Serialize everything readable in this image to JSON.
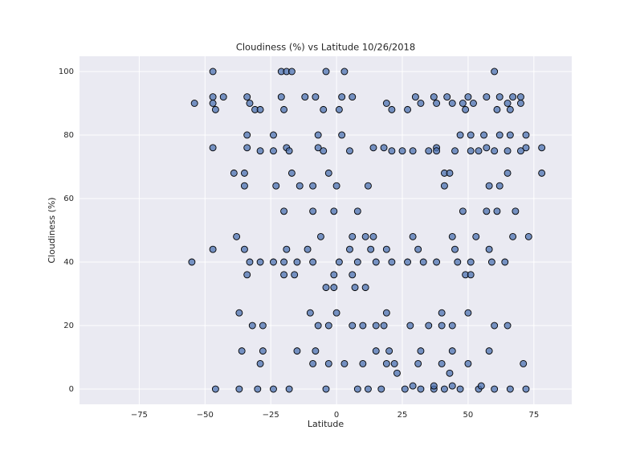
{
  "chart_data": {
    "type": "scatter",
    "title": "Cloudiness (%) vs Latitude 10/26/2018",
    "x_label": "Latitude",
    "y_label": "Cloudiness (%)",
    "xlim": [
      -97.7,
      89.4
    ],
    "ylim": [
      -4.8,
      104.8
    ],
    "xticks": [
      {
        "value": -75,
        "label": "−75"
      },
      {
        "value": -50,
        "label": "−50"
      },
      {
        "value": -25,
        "label": "−25"
      },
      0,
      25,
      50,
      75
    ],
    "yticks": [
      0,
      20,
      40,
      60,
      80,
      100
    ],
    "grid": true,
    "color": "#4c72b0",
    "x": [
      -46,
      -37,
      -30,
      -24,
      -18,
      -4,
      8,
      12,
      17,
      26,
      32,
      37,
      41,
      47,
      54,
      60,
      66,
      72,
      29,
      37,
      44,
      55,
      -47,
      -21,
      -19,
      -17,
      -4,
      3,
      60,
      -47,
      -43,
      -34,
      -21,
      -12,
      -8,
      2,
      6,
      30,
      37,
      42,
      50,
      57,
      62,
      67,
      70,
      -54,
      -47,
      -33,
      19,
      32,
      38,
      44,
      48,
      52,
      65,
      70,
      -46,
      -31,
      -29,
      -20,
      -5,
      1,
      21,
      27,
      49,
      61,
      66,
      -34,
      -24,
      -7,
      2,
      47,
      51,
      56,
      62,
      66,
      72,
      -47,
      -34,
      -19,
      -7,
      14,
      18,
      38,
      57,
      72,
      78,
      -29,
      -24,
      -18,
      -5,
      5,
      21,
      25,
      29,
      35,
      38,
      45,
      51,
      54,
      60,
      65,
      70,
      -39,
      -35,
      -17,
      -3,
      41,
      43,
      65,
      78,
      -35,
      -23,
      -14,
      -9,
      0,
      12,
      41,
      58,
      62,
      -20,
      -9,
      -1,
      8,
      48,
      57,
      61,
      68,
      -38,
      -6,
      6,
      11,
      14,
      29,
      44,
      53,
      67,
      73,
      -47,
      -35,
      -19,
      -11,
      5,
      13,
      19,
      31,
      45,
      58,
      -55,
      -33,
      -29,
      -24,
      -20,
      -15,
      -9,
      1,
      8,
      15,
      21,
      27,
      33,
      38,
      46,
      51,
      59,
      64,
      -34,
      -20,
      -16,
      -1,
      6,
      49,
      51,
      -4,
      -1,
      7,
      11,
      -37,
      -10,
      0,
      19,
      40,
      50,
      -32,
      -28,
      -7,
      -3,
      6,
      10,
      15,
      18,
      28,
      35,
      40,
      44,
      60,
      65,
      -36,
      -28,
      -15,
      -8,
      15,
      20,
      32,
      44,
      58,
      -29,
      -9,
      -3,
      3,
      10,
      19,
      22,
      31,
      40,
      50,
      71,
      23,
      43
    ],
    "values": [
      0,
      0,
      0,
      0,
      0,
      0,
      0,
      0,
      0,
      0,
      0,
      0,
      0,
      0,
      0,
      0,
      0,
      0,
      1,
      1,
      1,
      1,
      100,
      100,
      100,
      100,
      100,
      100,
      100,
      92,
      92,
      92,
      92,
      92,
      92,
      92,
      92,
      92,
      92,
      92,
      92,
      92,
      92,
      92,
      92,
      90,
      90,
      90,
      90,
      90,
      90,
      90,
      90,
      90,
      90,
      90,
      88,
      88,
      88,
      88,
      88,
      88,
      88,
      88,
      88,
      88,
      88,
      80,
      80,
      80,
      80,
      80,
      80,
      80,
      80,
      80,
      80,
      76,
      76,
      76,
      76,
      76,
      76,
      76,
      76,
      76,
      76,
      75,
      75,
      75,
      75,
      75,
      75,
      75,
      75,
      75,
      75,
      75,
      75,
      75,
      75,
      75,
      75,
      68,
      68,
      68,
      68,
      68,
      68,
      68,
      68,
      64,
      64,
      64,
      64,
      64,
      64,
      64,
      64,
      64,
      56,
      56,
      56,
      56,
      56,
      56,
      56,
      56,
      48,
      48,
      48,
      48,
      48,
      48,
      48,
      48,
      48,
      48,
      44,
      44,
      44,
      44,
      44,
      44,
      44,
      44,
      44,
      44,
      40,
      40,
      40,
      40,
      40,
      40,
      40,
      40,
      40,
      40,
      40,
      40,
      40,
      40,
      40,
      40,
      40,
      40,
      36,
      36,
      36,
      36,
      36,
      36,
      36,
      32,
      32,
      32,
      32,
      24,
      24,
      24,
      24,
      24,
      24,
      20,
      20,
      20,
      20,
      20,
      20,
      20,
      20,
      20,
      20,
      20,
      20,
      20,
      20,
      12,
      12,
      12,
      12,
      12,
      12,
      12,
      12,
      12,
      8,
      8,
      8,
      8,
      8,
      8,
      8,
      8,
      8,
      8,
      8,
      5,
      5
    ]
  }
}
